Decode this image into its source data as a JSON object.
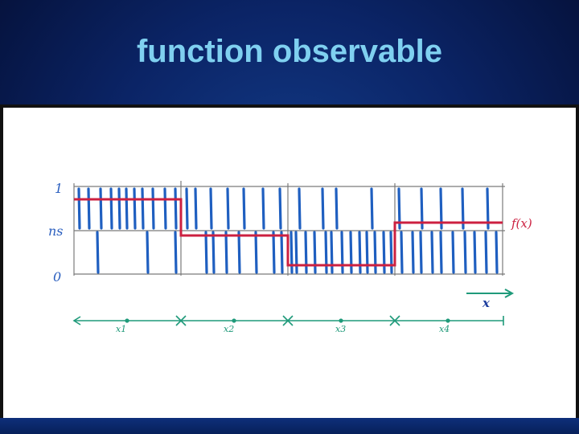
{
  "slide": {
    "title": "function observable"
  },
  "diagram": {
    "y_labels": {
      "top": "1",
      "middle": "ns",
      "bottom": "0"
    },
    "function_label": "f(x)",
    "x_arrow_label": "x",
    "x_points": [
      "x1",
      "x2",
      "x3",
      "x4"
    ],
    "colors": {
      "grid": "#777777",
      "bars": "#1f5fc0",
      "function": "#cc2040",
      "axis": "#1f9a7a"
    }
  }
}
